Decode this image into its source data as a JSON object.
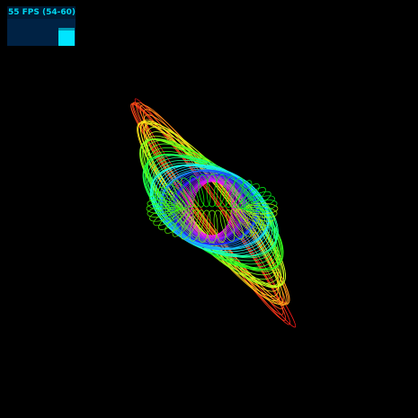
{
  "stats": {
    "fps_text": "55 FPS (54-60)",
    "fps": 55,
    "fps_min": 54,
    "fps_max": 60
  },
  "colors": {
    "background": "#000000",
    "panel_bg": "#001a33",
    "graph_bg": "#002244",
    "fps_text": "#00d6f0",
    "fps_bar": "#00e5ff"
  }
}
